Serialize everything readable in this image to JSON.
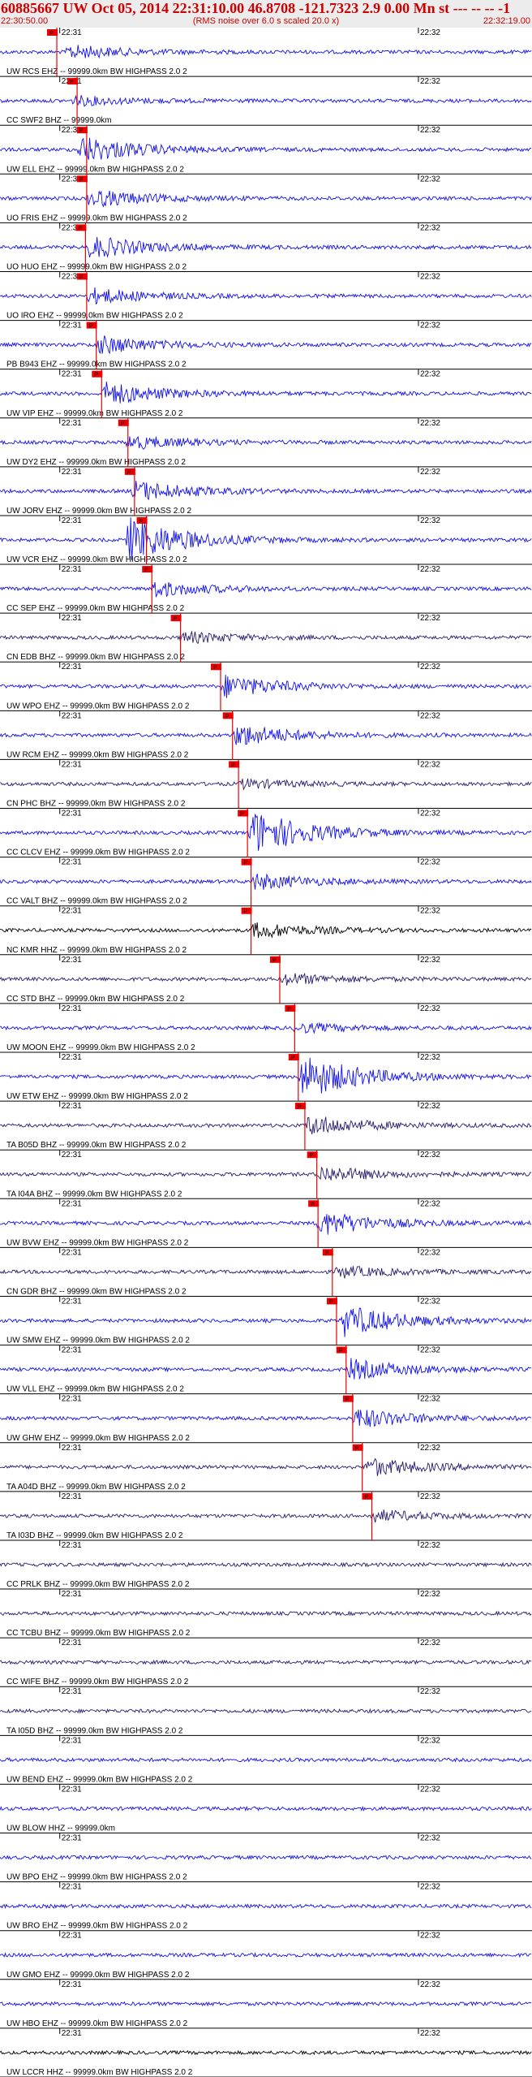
{
  "header": {
    "title": "60885667 UW Oct 05, 2014 22:31:10.00   46.8708 -121.7323  2.9 0.00 Mn st --- -- --   -1",
    "rms_note": "(RMS noise over 6.0 s scaled 20.0 x)",
    "time_start": "22:30:50.00",
    "time_end": "22:32:19.00"
  },
  "colors": {
    "trace": "#1010ee",
    "trace_dark": "#2a1a6e",
    "trace_black": "#000000",
    "pick": "#ee0000",
    "background": "#ffffff"
  },
  "chart_data": {
    "type": "line",
    "xlabel": "",
    "ylabel": "",
    "time_range": [
      "22:30:50.00",
      "22:32:19.00"
    ],
    "tick_labels": [
      "22:31",
      "22:32"
    ],
    "pick_label": "P",
    "traces": [
      {
        "label": "UW RCS EHZ -- 99999.0km BW  HIGHPASS  2.0  2",
        "pick_s": 9.5,
        "event_s": 11,
        "amp": 0.3,
        "color": "trace"
      },
      {
        "label": "CC SWF2 BHZ -- 99999.0km",
        "pick_s": 12.9,
        "event_s": 12,
        "amp": 0.2,
        "color": "trace"
      },
      {
        "label": "UW ELL EHZ -- 99999.0km BW  HIGHPASS  2.0  2",
        "pick_s": 14.5,
        "event_s": 13,
        "amp": 0.6,
        "color": "trace"
      },
      {
        "label": "UO FRIS EHZ -- 99999.0km BW  HIGHPASS  2.0  2",
        "pick_s": 14.5,
        "event_s": 14.5,
        "amp": 0.4,
        "color": "trace"
      },
      {
        "label": "UO HUO EHZ -- 99999.0km BW  HIGHPASS  2.0  2",
        "pick_s": 14.3,
        "event_s": 14.5,
        "amp": 0.5,
        "color": "trace"
      },
      {
        "label": "UO IRO EHZ -- 99999.0km BW  HIGHPASS  2.0  2",
        "pick_s": 14.5,
        "event_s": 14.5,
        "amp": 0.35,
        "color": "trace"
      },
      {
        "label": "PB B943 EHZ -- 99999.0km BW  HIGHPASS  2.0  2",
        "pick_s": 16.1,
        "event_s": 16,
        "amp": 0.4,
        "color": "trace"
      },
      {
        "label": "UW VIP EHZ -- 99999.0km BW  HIGHPASS  2.0  2",
        "pick_s": 17.0,
        "event_s": 17,
        "amp": 0.5,
        "color": "trace"
      },
      {
        "label": "UW DY2 EHZ -- 99999.0km BW  HIGHPASS  2.0  2",
        "pick_s": 21.4,
        "event_s": 21,
        "amp": 0.3,
        "color": "trace"
      },
      {
        "label": "UW JORV EHZ -- 99999.0km BW  HIGHPASS  2.0  2",
        "pick_s": 22.5,
        "event_s": 22,
        "amp": 0.45,
        "color": "trace"
      },
      {
        "label": "UW VCR EHZ -- 99999.0km BW  HIGHPASS  2.0  2",
        "pick_s": 24.5,
        "event_s": 21,
        "amp": 1.0,
        "color": "trace"
      },
      {
        "label": "CC SEP EHZ -- 99999.0km BW  HIGHPASS  2.0  2",
        "pick_s": 25.4,
        "event_s": 25,
        "amp": 0.35,
        "color": "trace"
      },
      {
        "label": "CN EDB BHZ -- 99999.0km BW  HIGHPASS  2.0  2",
        "pick_s": 30.2,
        "event_s": 30,
        "amp": 0.25,
        "color": "trace_dark"
      },
      {
        "label": "UW WPO EHZ -- 99999.0km BW  HIGHPASS  2.0  2",
        "pick_s": 36.9,
        "event_s": 37,
        "amp": 0.5,
        "color": "trace"
      },
      {
        "label": "UW RCM EHZ -- 99999.0km BW  HIGHPASS  2.0  2",
        "pick_s": 38.9,
        "event_s": 39,
        "amp": 0.5,
        "color": "trace"
      },
      {
        "label": "CN PHC BHZ -- 99999.0km BW  HIGHPASS  2.0  2",
        "pick_s": 39.9,
        "event_s": 40,
        "amp": 0.2,
        "color": "trace_dark"
      },
      {
        "label": "CC CLCV EHZ -- 99999.0km BW  HIGHPASS  2.0  2",
        "pick_s": 41.4,
        "event_s": 41.5,
        "amp": 1.0,
        "color": "trace"
      },
      {
        "label": "CC VALT BHZ -- 99999.0km BW  HIGHPASS  2.0  2",
        "pick_s": 42.0,
        "event_s": 42,
        "amp": 0.35,
        "color": "trace"
      },
      {
        "label": "NC KMR HHZ -- 99999.0km BW  HIGHPASS  2.0  2",
        "pick_s": 42.0,
        "event_s": 42,
        "amp": 0.35,
        "color": "trace_black"
      },
      {
        "label": "CC STD BHZ -- 99999.0km BW  HIGHPASS  2.0  2",
        "pick_s": 46.8,
        "event_s": 47,
        "amp": 0.25,
        "color": "trace_dark"
      },
      {
        "label": "UW MOON EHZ -- 99999.0km BW  HIGHPASS  2.0  2",
        "pick_s": 49.3,
        "event_s": 49,
        "amp": 0.2,
        "color": "trace"
      },
      {
        "label": "UW ETW EHZ -- 99999.0km BW  HIGHPASS  2.0  2",
        "pick_s": 49.9,
        "event_s": 50,
        "amp": 1.0,
        "color": "trace"
      },
      {
        "label": "TA B05D BHZ -- 99999.0km BW  HIGHPASS  2.0  2",
        "pick_s": 51.0,
        "event_s": 51,
        "amp": 0.45,
        "color": "trace_dark"
      },
      {
        "label": "TA I04A BHZ -- 99999.0km BW  HIGHPASS  2.0  2",
        "pick_s": 53.0,
        "event_s": 53,
        "amp": 0.35,
        "color": "trace_dark"
      },
      {
        "label": "UW BVW EHZ -- 99999.0km BW  HIGHPASS  2.0  2",
        "pick_s": 53.2,
        "event_s": 53,
        "amp": 0.55,
        "color": "trace"
      },
      {
        "label": "CN GDR BHZ -- 99999.0km BW  HIGHPASS  2.0  2",
        "pick_s": 55.6,
        "event_s": 56,
        "amp": 0.25,
        "color": "trace_dark"
      },
      {
        "label": "UW SMW EHZ -- 99999.0km BW  HIGHPASS  2.0  2",
        "pick_s": 56.3,
        "event_s": 57,
        "amp": 0.7,
        "color": "trace"
      },
      {
        "label": "UW VLL EHZ -- 99999.0km BW  HIGHPASS  2.0  2",
        "pick_s": 57.9,
        "event_s": 58,
        "amp": 0.45,
        "color": "trace"
      },
      {
        "label": "UW GHW EHZ -- 99999.0km BW  HIGHPASS  2.0  2",
        "pick_s": 59.0,
        "event_s": 59,
        "amp": 0.45,
        "color": "trace"
      },
      {
        "label": "TA A04D BHZ -- 99999.0km BW  HIGHPASS  2.0  2",
        "pick_s": 60.6,
        "event_s": 61,
        "amp": 0.4,
        "color": "trace_dark"
      },
      {
        "label": "TA I03D BHZ -- 99999.0km BW  HIGHPASS  2.0  2",
        "pick_s": 62.2,
        "event_s": 62,
        "amp": 0.25,
        "color": "trace_dark"
      },
      {
        "label": "CC PRLK BHZ -- 99999.0km BW  HIGHPASS  2.0  2",
        "pick_s": null,
        "event_s": null,
        "amp": 0,
        "color": "trace_dark"
      },
      {
        "label": "CC TCBU BHZ -- 99999.0km BW  HIGHPASS  2.0  2",
        "pick_s": null,
        "event_s": null,
        "amp": 0,
        "color": "trace_dark"
      },
      {
        "label": "CC WIFE BHZ -- 99999.0km BW  HIGHPASS  2.0  2",
        "pick_s": null,
        "event_s": null,
        "amp": 0,
        "color": "trace_dark"
      },
      {
        "label": "TA I05D BHZ -- 99999.0km BW  HIGHPASS  2.0  2",
        "pick_s": null,
        "event_s": null,
        "amp": 0,
        "color": "trace_dark"
      },
      {
        "label": "UW BEND EHZ -- 99999.0km BW  HIGHPASS  2.0  2",
        "pick_s": null,
        "event_s": null,
        "amp": 0,
        "color": "trace"
      },
      {
        "label": "UW BLOW HHZ -- 99999.0km",
        "pick_s": null,
        "event_s": null,
        "amp": 0,
        "color": "trace"
      },
      {
        "label": "UW BPO EHZ -- 99999.0km BW  HIGHPASS  2.0  2",
        "pick_s": null,
        "event_s": null,
        "amp": 0,
        "color": "trace"
      },
      {
        "label": "UW BRO EHZ -- 99999.0km BW  HIGHPASS  2.0  2",
        "pick_s": null,
        "event_s": null,
        "amp": 0,
        "color": "trace"
      },
      {
        "label": "UW GMO EHZ -- 99999.0km BW  HIGHPASS  2.0  2",
        "pick_s": null,
        "event_s": null,
        "amp": 0,
        "color": "trace"
      },
      {
        "label": "UW HBO EHZ -- 99999.0km BW  HIGHPASS  2.0  2",
        "pick_s": null,
        "event_s": null,
        "amp": 0,
        "color": "trace"
      },
      {
        "label": "UW LCCR HHZ -- 99999.0km BW  HIGHPASS  2.0  2",
        "pick_s": null,
        "event_s": null,
        "amp": 0,
        "color": "trace_black"
      }
    ]
  }
}
